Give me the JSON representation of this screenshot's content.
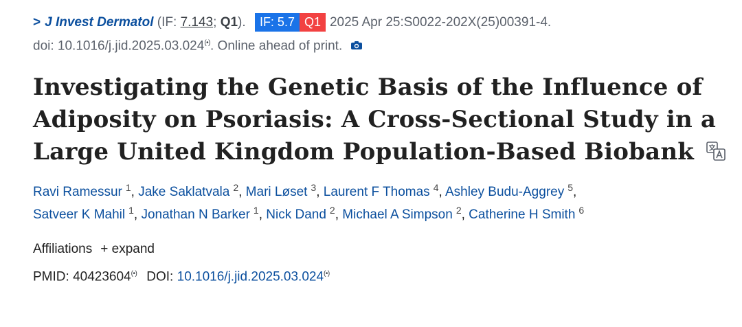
{
  "citation": {
    "chevron": ">",
    "journal": "J Invest Dermatol",
    "if_prefix": " (IF: ",
    "if_value": "7.143",
    "if_sep": "; ",
    "quartile": "Q1",
    "if_suffix": "). ",
    "badge_if": "IF: 5.7",
    "badge_q": "Q1",
    "date_ref": "2025 Apr 25:S0022-202X(25)00391-4.",
    "doi_text": "doi: 10.1016/j.jid.2025.03.024",
    "signal_mark": "(•)",
    "online_text": ". Online ahead of print."
  },
  "title": {
    "line1": "Investigating the Genetic Basis of the Influence of",
    "line2": "Adiposity on Psoriasis: A Cross-Sectional Study in a",
    "line3": "Large United Kingdom Population-Based Biobank"
  },
  "authors": [
    {
      "name": "Ravi Ramessur",
      "aff": "1"
    },
    {
      "name": "Jake Saklatvala",
      "aff": "2"
    },
    {
      "name": "Mari Løset",
      "aff": "3"
    },
    {
      "name": "Laurent F Thomas",
      "aff": "4"
    },
    {
      "name": "Ashley Budu-Aggrey",
      "aff": "5"
    },
    {
      "name": "Satveer K Mahil",
      "aff": "1"
    },
    {
      "name": "Jonathan N Barker",
      "aff": "1"
    },
    {
      "name": "Nick Dand",
      "aff": "2"
    },
    {
      "name": "Michael A Simpson",
      "aff": "2"
    },
    {
      "name": "Catherine H Smith",
      "aff": "6"
    }
  ],
  "affiliations": {
    "label": "Affiliations",
    "expand": "+ expand"
  },
  "ids": {
    "pmid_label": "PMID: ",
    "pmid": "40423604",
    "doi_label": "DOI: ",
    "doi": "10.1016/j.jid.2025.03.024",
    "signal_mark": "(•)"
  },
  "colors": {
    "link": "#0b4f9e",
    "badge_if_bg": "#1a73e8",
    "badge_q_bg": "#f24141"
  },
  "icons": {
    "camera": "camera-icon",
    "translate": "translate-icon"
  }
}
